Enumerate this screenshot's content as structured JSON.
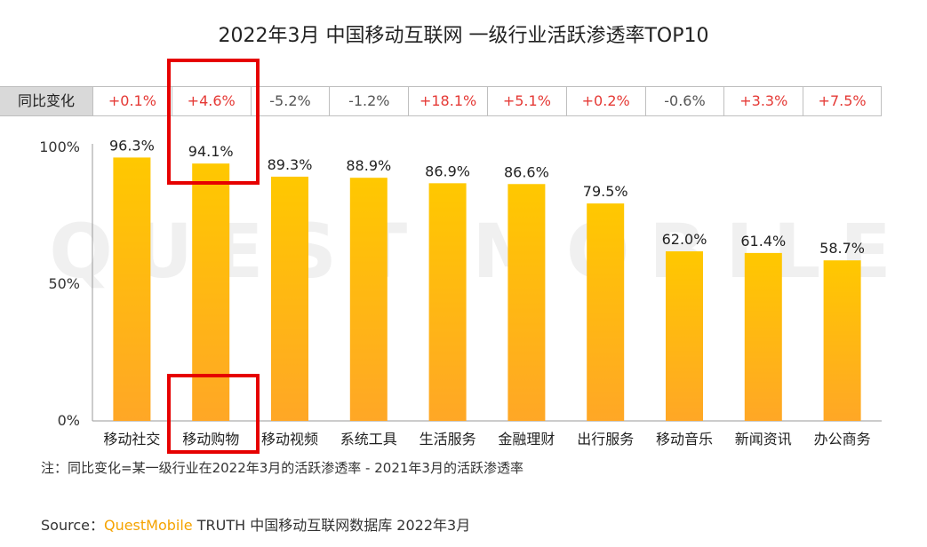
{
  "title": "2022年3月 中国移动互联网 一级行业活跃渗透率TOP10",
  "yoy": {
    "label": "同比变化",
    "values": [
      "+0.1%",
      "+4.6%",
      "-5.2%",
      "-1.2%",
      "+18.1%",
      "+5.1%",
      "+0.2%",
      "-0.6%",
      "+3.3%",
      "+7.5%"
    ]
  },
  "watermark": "QUEST MOBILE",
  "chart_data": {
    "type": "bar",
    "categories": [
      "移动社交",
      "移动购物",
      "移动视频",
      "系统工具",
      "生活服务",
      "金融理财",
      "出行服务",
      "移动音乐",
      "新闻资讯",
      "办公商务"
    ],
    "values": [
      96.3,
      94.1,
      89.3,
      88.9,
      86.9,
      86.6,
      79.5,
      62.0,
      61.4,
      58.7
    ],
    "value_labels": [
      "96.3%",
      "94.1%",
      "89.3%",
      "88.9%",
      "86.9%",
      "86.6%",
      "79.5%",
      "62.0%",
      "61.4%",
      "58.7%"
    ],
    "y_ticks": [
      "0%",
      "50%",
      "100%"
    ],
    "ylim": [
      0,
      100
    ],
    "bar_color_top": "#ffc800",
    "bar_color_bottom": "#ffa726",
    "highlighted_category": "移动购物"
  },
  "note": "注：同比变化=某一级行业在2022年3月的活跃渗透率 - 2021年3月的活跃渗透率",
  "source": {
    "prefix": "Source：",
    "brand": "QuestMobile",
    "suffix": " TRUTH 中国移动互联网数据库 2022年3月"
  },
  "colors": {
    "positive": "#e53935",
    "negative": "#555555",
    "highlight": "#e60000",
    "brand": "#f5a300"
  }
}
